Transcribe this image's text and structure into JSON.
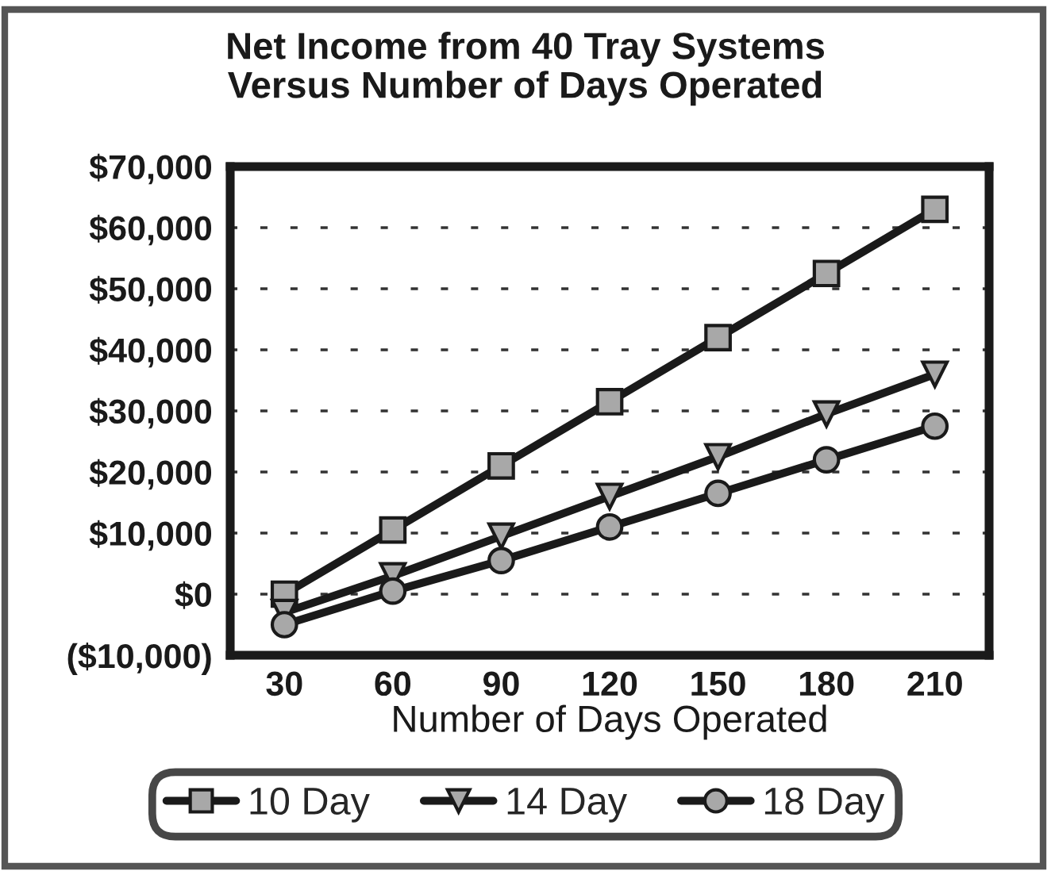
{
  "chart_data": {
    "type": "line",
    "title": "Net Income from 40 Tray Systems\nVersus Number of Days Operated",
    "xlabel": "Number of Days Operated",
    "categories": [
      "30",
      "60",
      "90",
      "120",
      "150",
      "180",
      "210"
    ],
    "series": [
      {
        "name": "10 Day",
        "color": "#1a1a1a",
        "marker": "square",
        "values": [
          0,
          10500,
          21000,
          31500,
          42000,
          52500,
          63000
        ]
      },
      {
        "name": "14 Day",
        "color": "#1a1a1a",
        "marker": "triangle",
        "values": [
          -3000,
          3000,
          9500,
          16000,
          22500,
          29500,
          36000
        ]
      },
      {
        "name": "18 Day",
        "color": "#1a1a1a",
        "marker": "circle",
        "values": [
          -5000,
          500,
          5500,
          11000,
          16500,
          22000,
          27500
        ]
      }
    ],
    "ylim": [
      -10000,
      70000
    ],
    "yticks": [
      {
        "value": 70000,
        "label": "$70,000"
      },
      {
        "value": 60000,
        "label": "$60,000"
      },
      {
        "value": 50000,
        "label": "$50,000"
      },
      {
        "value": 40000,
        "label": "$40,000"
      },
      {
        "value": 30000,
        "label": "$30,000"
      },
      {
        "value": 20000,
        "label": "$20,000"
      },
      {
        "value": 10000,
        "label": "$10,000"
      },
      {
        "value": 0,
        "label": "$0"
      },
      {
        "value": -10000,
        "label": "($10,000)"
      }
    ],
    "grid": "y",
    "legend": "bottom",
    "line_style": "solid"
  }
}
